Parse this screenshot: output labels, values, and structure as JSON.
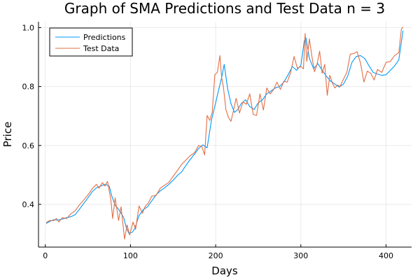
{
  "chart_data": {
    "type": "line",
    "title": "Graph of SMA Predictions and Test Data n = 3",
    "xlabel": "Days",
    "ylabel": "Price",
    "xlim": [
      -8,
      430
    ],
    "ylim": [
      0.255,
      1.02
    ],
    "xticks": [
      0,
      100,
      200,
      300,
      400
    ],
    "yticks": [
      0.4,
      0.6,
      0.8,
      1.0
    ],
    "xtick_labels": [
      "0",
      "100",
      "200",
      "300",
      "400"
    ],
    "ytick_labels": [
      "0.4",
      "0.6",
      "0.8",
      "1.0"
    ],
    "grid": true,
    "legend_position": "top-left",
    "series": [
      {
        "name": "Predictions",
        "color": "#009AFA",
        "x": [
          1,
          5,
          10,
          15,
          20,
          25,
          30,
          35,
          40,
          45,
          50,
          55,
          60,
          65,
          70,
          75,
          78,
          82,
          85,
          88,
          92,
          95,
          98,
          102,
          105,
          110,
          115,
          120,
          125,
          130,
          135,
          140,
          145,
          150,
          155,
          160,
          165,
          170,
          175,
          180,
          185,
          190,
          195,
          200,
          204,
          207,
          210,
          214,
          218,
          222,
          226,
          230,
          235,
          240,
          245,
          250,
          255,
          260,
          265,
          270,
          275,
          280,
          285,
          290,
          295,
          300,
          304,
          306,
          310,
          315,
          320,
          325,
          330,
          335,
          340,
          345,
          350,
          355,
          360,
          365,
          370,
          375,
          380,
          385,
          390,
          395,
          400,
          405,
          410,
          415,
          420
        ],
        "y": [
          0.335,
          0.342,
          0.348,
          0.347,
          0.35,
          0.355,
          0.358,
          0.365,
          0.383,
          0.403,
          0.422,
          0.443,
          0.456,
          0.462,
          0.468,
          0.462,
          0.428,
          0.397,
          0.387,
          0.375,
          0.355,
          0.322,
          0.302,
          0.305,
          0.318,
          0.362,
          0.382,
          0.392,
          0.412,
          0.432,
          0.446,
          0.456,
          0.468,
          0.482,
          0.498,
          0.51,
          0.532,
          0.552,
          0.57,
          0.59,
          0.602,
          0.592,
          0.685,
          0.745,
          0.795,
          0.83,
          0.875,
          0.792,
          0.742,
          0.712,
          0.722,
          0.742,
          0.755,
          0.732,
          0.722,
          0.745,
          0.755,
          0.775,
          0.785,
          0.795,
          0.8,
          0.815,
          0.84,
          0.868,
          0.855,
          0.872,
          0.955,
          0.965,
          0.895,
          0.86,
          0.878,
          0.855,
          0.835,
          0.818,
          0.808,
          0.798,
          0.808,
          0.835,
          0.882,
          0.902,
          0.905,
          0.895,
          0.87,
          0.848,
          0.842,
          0.838,
          0.84,
          0.855,
          0.87,
          0.89,
          0.99
        ]
      },
      {
        "name": "Test Data",
        "color": "#E26F46",
        "x": [
          1,
          5,
          10,
          13,
          16,
          20,
          25,
          30,
          35,
          40,
          45,
          50,
          55,
          60,
          63,
          67,
          70,
          73,
          77,
          79,
          82,
          86,
          89,
          93,
          96,
          99,
          103,
          106,
          110,
          114,
          117,
          121,
          125,
          130,
          135,
          140,
          145,
          150,
          155,
          160,
          165,
          170,
          175,
          180,
          184,
          187,
          190,
          193,
          196,
          199,
          202,
          205,
          207,
          209,
          212,
          215,
          218,
          221,
          224,
          228,
          232,
          236,
          240,
          244,
          248,
          252,
          256,
          260,
          264,
          268,
          272,
          276,
          280,
          284,
          288,
          292,
          296,
          300,
          303,
          305,
          307,
          310,
          313,
          316,
          319,
          322,
          325,
          328,
          331,
          334,
          337,
          340,
          343,
          346,
          350,
          354,
          358,
          362,
          366,
          370,
          374,
          378,
          382,
          386,
          390,
          395,
          400,
          405,
          410,
          415,
          418,
          420
        ],
        "y": [
          0.338,
          0.345,
          0.345,
          0.352,
          0.34,
          0.355,
          0.352,
          0.368,
          0.378,
          0.398,
          0.415,
          0.432,
          0.453,
          0.468,
          0.455,
          0.474,
          0.462,
          0.478,
          0.415,
          0.352,
          0.422,
          0.345,
          0.392,
          0.282,
          0.33,
          0.296,
          0.34,
          0.315,
          0.395,
          0.37,
          0.392,
          0.405,
          0.428,
          0.43,
          0.455,
          0.465,
          0.475,
          0.495,
          0.515,
          0.535,
          0.55,
          0.565,
          0.575,
          0.6,
          0.595,
          0.568,
          0.702,
          0.685,
          0.712,
          0.84,
          0.848,
          0.905,
          0.83,
          0.8,
          0.722,
          0.695,
          0.682,
          0.72,
          0.76,
          0.71,
          0.748,
          0.74,
          0.775,
          0.705,
          0.702,
          0.775,
          0.72,
          0.795,
          0.775,
          0.79,
          0.815,
          0.79,
          0.818,
          0.815,
          0.848,
          0.902,
          0.862,
          0.868,
          0.86,
          0.98,
          0.885,
          0.962,
          0.902,
          0.85,
          0.875,
          0.92,
          0.845,
          0.875,
          0.77,
          0.838,
          0.812,
          0.795,
          0.805,
          0.8,
          0.825,
          0.848,
          0.91,
          0.912,
          0.918,
          0.88,
          0.815,
          0.852,
          0.845,
          0.822,
          0.858,
          0.848,
          0.882,
          0.885,
          0.905,
          0.915,
          0.995,
          1.002
        ]
      }
    ]
  }
}
